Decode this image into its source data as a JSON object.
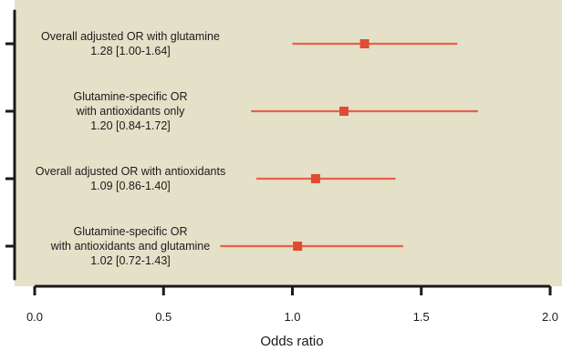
{
  "chart_data": {
    "type": "forest",
    "xlabel": "Odds ratio",
    "xlim": [
      0,
      2.0
    ],
    "x_ticks": [
      {
        "value": 0.0,
        "label": "0.0"
      },
      {
        "value": 0.5,
        "label": "0.5"
      },
      {
        "value": 1.0,
        "label": "1.0"
      },
      {
        "value": 1.5,
        "label": "1.5"
      },
      {
        "value": 2.0,
        "label": "2.0"
      }
    ],
    "rows": [
      {
        "label_lines": [
          "Overall adjusted OR with glutamine",
          "1.28 [1.00-1.64]"
        ],
        "estimate": 1.28,
        "ci_low": 1.0,
        "ci_high": 1.64
      },
      {
        "label_lines": [
          "Glutamine-specific OR",
          "with antioxidants only",
          "1.20 [0.84-1.72]"
        ],
        "estimate": 1.2,
        "ci_low": 0.84,
        "ci_high": 1.72
      },
      {
        "label_lines": [
          "Overall adjusted OR with antioxidants",
          "1.09 [0.86-1.40]"
        ],
        "estimate": 1.09,
        "ci_low": 0.86,
        "ci_high": 1.4
      },
      {
        "label_lines": [
          "Glutamine-specific OR",
          "with antioxidants and glutamine",
          "1.02 [0.72-1.43]"
        ],
        "estimate": 1.02,
        "ci_low": 0.72,
        "ci_high": 1.43
      }
    ],
    "grid": false,
    "colors": {
      "plot_background": "#e5e0c8",
      "marker": "#e04c33",
      "ci_line": "#e8604a",
      "axis": "#1a1a1a"
    }
  }
}
